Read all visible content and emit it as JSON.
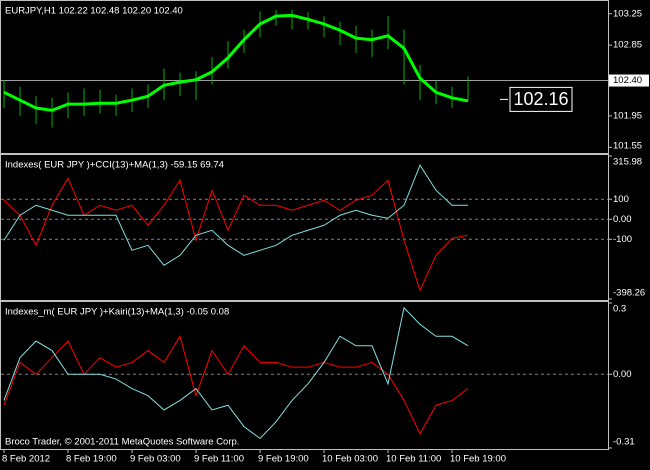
{
  "chart_data": [
    {
      "type": "ohlc",
      "title": "EURJPY,H1  102.22 102.48 102.20 102.40",
      "ylim": [
        101.49,
        103.4
      ],
      "yticks": [
        103.25,
        102.85,
        101.95,
        101.55
      ],
      "grid": false,
      "price_line": {
        "value": 102.4,
        "label": "102.40"
      },
      "last_label": 102.16,
      "bar_color": "#00b400",
      "ma_color": "#00ff00",
      "high": [
        102.4,
        102.32,
        102.2,
        102.18,
        102.25,
        102.3,
        102.28,
        102.22,
        102.3,
        102.35,
        102.55,
        102.5,
        102.52,
        102.7,
        102.9,
        103.05,
        103.28,
        103.3,
        103.3,
        103.27,
        103.22,
        103.15,
        103.1,
        103.05,
        103.22,
        103.05,
        102.6,
        102.4,
        102.32,
        102.45
      ],
      "low": [
        102.05,
        101.95,
        101.85,
        101.8,
        101.92,
        101.95,
        101.98,
        101.95,
        102.0,
        102.05,
        102.15,
        102.2,
        102.15,
        102.35,
        102.55,
        102.75,
        102.95,
        103.1,
        103.05,
        103.05,
        102.95,
        102.85,
        102.75,
        102.7,
        102.8,
        102.35,
        102.15,
        102.1,
        102.05,
        102.15
      ],
      "ma": [
        102.25,
        102.15,
        102.05,
        102.02,
        102.1,
        102.1,
        102.11,
        102.11,
        102.15,
        102.2,
        102.34,
        102.38,
        102.41,
        102.51,
        102.69,
        102.92,
        103.12,
        103.22,
        103.23,
        103.18,
        103.12,
        103.04,
        102.94,
        102.92,
        102.97,
        102.81,
        102.43,
        102.25,
        102.18,
        102.14
      ]
    },
    {
      "type": "line",
      "title": "Indexes( EUR JPY )+CCI(13)+MA(1,3) -59.15 69.74",
      "ylim": [
        -398.26,
        315.98
      ],
      "yticks": [
        315.98,
        100,
        {
          "value": 0,
          "label": "0.00"
        },
        -100,
        -398.26
      ],
      "grid": true,
      "series": [
        {
          "color": "#ff0000",
          "values": [
            95,
            20,
            -130,
            70,
            205,
            20,
            70,
            45,
            70,
            -30,
            70,
            195,
            -105,
            145,
            -55,
            120,
            70,
            70,
            45,
            70,
            95,
            45,
            95,
            120,
            195,
            -105,
            -355,
            -180,
            -95,
            -80
          ]
        },
        {
          "color": "#80e0e0",
          "values": [
            -105,
            20,
            70,
            45,
            20,
            20,
            20,
            20,
            -155,
            -130,
            -230,
            -180,
            -80,
            -55,
            -130,
            -180,
            -155,
            -130,
            -80,
            -55,
            -30,
            20,
            45,
            20,
            5,
            70,
            270,
            145,
            70,
            70
          ]
        }
      ]
    },
    {
      "type": "line",
      "title": "Indexes_m( EUR JPY )+Kairi(13)+MA(1,3) -0.05 0.08",
      "footer": "Broco Trader, © 2001-2011 MetaQuotes Software Corp.",
      "ylim": [
        -0.31,
        0.3
      ],
      "yticks": [
        0.3,
        {
          "value": 0,
          "label": "0.00"
        },
        -0.31
      ],
      "grid": true,
      "categories": [
        "8 Feb 2012",
        null,
        null,
        null,
        "8 Feb 19:00",
        null,
        null,
        null,
        "9 Feb 03:00",
        null,
        null,
        null,
        "9 Feb 11:00",
        null,
        null,
        null,
        "9 Feb 19:00",
        null,
        null,
        null,
        "10 Feb 03:00",
        null,
        null,
        null,
        "10 Feb 11:00",
        null,
        null,
        null,
        "10 Feb 19:00",
        null
      ],
      "series": [
        {
          "color": "#ff0000",
          "values": [
            -0.13,
            0.05,
            0,
            0.07,
            0.14,
            0,
            0.07,
            0.03,
            0.05,
            0.1,
            0.05,
            0.16,
            -0.09,
            0.1,
            0,
            0.12,
            0.05,
            0.05,
            0.03,
            0.03,
            0.05,
            0.03,
            0.03,
            0.05,
            0,
            -0.11,
            -0.25,
            -0.13,
            -0.11,
            -0.06
          ]
        },
        {
          "color": "#80e0e0",
          "values": [
            -0.11,
            0.07,
            0.14,
            0.1,
            0,
            0,
            0,
            -0.02,
            -0.06,
            -0.09,
            -0.15,
            -0.11,
            -0.06,
            -0.15,
            -0.13,
            -0.22,
            -0.27,
            -0.2,
            -0.11,
            -0.04,
            0.05,
            0.16,
            0.12,
            0.12,
            -0.04,
            0.28,
            0.21,
            0.16,
            0.16,
            0.12
          ]
        }
      ]
    }
  ]
}
